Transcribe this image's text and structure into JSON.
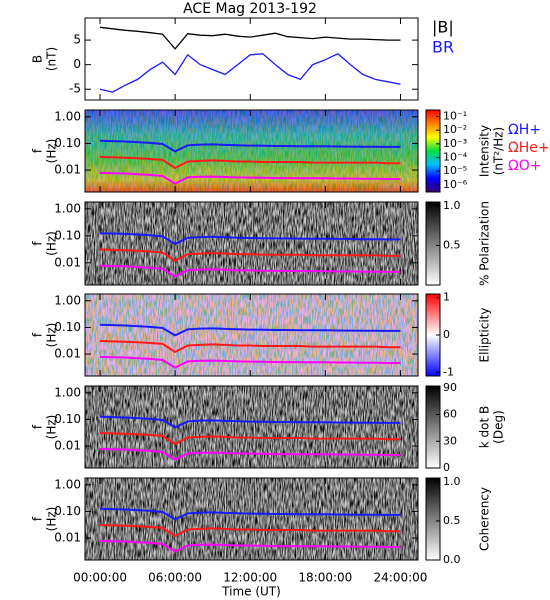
{
  "title": "ACE Mag 2013-192",
  "time_axis": {
    "xlim": [
      -1.2,
      25.4
    ],
    "xlabel": "Time (UT)",
    "xticks": [
      {
        "value": 0,
        "label": "00:00:00"
      },
      {
        "value": 6,
        "label": "06:00:00"
      },
      {
        "value": 12,
        "label": "12:00:00"
      },
      {
        "value": 18,
        "label": "18:00:00"
      },
      {
        "value": 24,
        "label": "24:00:00"
      }
    ]
  },
  "gyro_lines": {
    "x": [
      0,
      1,
      2,
      3,
      4,
      5,
      6,
      7,
      8,
      9,
      10,
      11,
      12,
      13,
      14,
      15,
      16,
      17,
      18,
      19,
      20,
      21,
      22,
      23,
      24
    ],
    "series": [
      {
        "name": "ΩH+",
        "color": "#1a1aff",
        "values": [
          0.125,
          0.122,
          0.118,
          0.112,
          0.105,
          0.095,
          0.05,
          0.085,
          0.09,
          0.092,
          0.088,
          0.085,
          0.083,
          0.082,
          0.08,
          0.08,
          0.079,
          0.078,
          0.078,
          0.077,
          0.076,
          0.075,
          0.075,
          0.074,
          0.074
        ]
      },
      {
        "name": "ΩHe+",
        "color": "#ff1a1a",
        "values": [
          0.031,
          0.03,
          0.029,
          0.028,
          0.026,
          0.024,
          0.012,
          0.021,
          0.022,
          0.023,
          0.022,
          0.021,
          0.021,
          0.02,
          0.02,
          0.02,
          0.02,
          0.019,
          0.019,
          0.019,
          0.019,
          0.019,
          0.019,
          0.018,
          0.018
        ]
      },
      {
        "name": "ΩO+",
        "color": "#ff00ff",
        "values": [
          0.0078,
          0.0076,
          0.0074,
          0.007,
          0.0066,
          0.006,
          0.0031,
          0.0053,
          0.0056,
          0.0057,
          0.0055,
          0.0053,
          0.0052,
          0.0051,
          0.005,
          0.005,
          0.0049,
          0.0049,
          0.0049,
          0.0048,
          0.0048,
          0.0047,
          0.0047,
          0.0046,
          0.0046
        ]
      }
    ]
  },
  "chart_data": [
    {
      "type": "line",
      "ylabel": [
        "B",
        "(nT)"
      ],
      "ylim": [
        -7.2,
        9.5
      ],
      "yticks": [
        -5,
        0,
        5
      ],
      "x": [
        0,
        1,
        2,
        3,
        4,
        5,
        6,
        7,
        8,
        9,
        10,
        11,
        12,
        13,
        14,
        15,
        16,
        17,
        18,
        19,
        20,
        21,
        22,
        23,
        24
      ],
      "series": [
        {
          "name": "|B|",
          "color": "#000000",
          "values": [
            7.6,
            7.3,
            7.0,
            6.8,
            6.5,
            6.2,
            3.2,
            6.3,
            6.0,
            5.9,
            6.2,
            5.8,
            5.6,
            6.0,
            6.4,
            5.7,
            5.5,
            5.3,
            5.6,
            5.4,
            5.2,
            5.2,
            5.1,
            5.0,
            5.0
          ]
        },
        {
          "name": "BR",
          "color": "#1a1aff",
          "values": [
            -5.0,
            -5.6,
            -4.2,
            -3.0,
            -1.0,
            0.5,
            -2.0,
            2.0,
            0.0,
            -1.0,
            -2.0,
            0.0,
            2.0,
            2.2,
            0.0,
            -2.0,
            -3.0,
            0.0,
            1.0,
            2.2,
            0.0,
            -2.0,
            -3.0,
            -3.5,
            -4.0
          ]
        }
      ]
    },
    {
      "type": "spectrogram",
      "texture": "intensity",
      "ylabel": [
        "f",
        "(Hz)"
      ],
      "log_y": true,
      "ylim": [
        0.0015,
        1.8
      ],
      "yticks": [
        {
          "value": 0.01,
          "label": "0.01"
        },
        {
          "value": 0.1,
          "label": "0.10"
        },
        {
          "value": 1,
          "label": "1.00"
        }
      ],
      "colorbar": {
        "label": [
          "Intensity",
          "(nT²/Hz)"
        ],
        "log": true,
        "lim": [
          3e-07,
          0.3
        ],
        "colors": [
          "#3a0070",
          "#0000ff",
          "#00c0ff",
          "#00e040",
          "#ffff00",
          "#ff8000",
          "#ff0000"
        ],
        "ticks": [
          {
            "value": 1e-06,
            "label": "10⁻⁶"
          },
          {
            "value": 1e-05,
            "label": "10⁻⁵"
          },
          {
            "value": 0.0001,
            "label": "10⁻⁴"
          },
          {
            "value": 0.001,
            "label": "10⁻³"
          },
          {
            "value": 0.01,
            "label": "10⁻²"
          },
          {
            "value": 0.1,
            "label": "10⁻¹"
          }
        ]
      }
    },
    {
      "type": "spectrogram",
      "texture": "gray",
      "ylabel": [
        "f",
        "(Hz)"
      ],
      "log_y": true,
      "ylim": [
        0.0015,
        1.8
      ],
      "yticks": [
        {
          "value": 0.01,
          "label": "0.01"
        },
        {
          "value": 0.1,
          "label": "0.10"
        },
        {
          "value": 1,
          "label": "1.00"
        }
      ],
      "colorbar": {
        "label": [
          "% Polarization"
        ],
        "lim": [
          0,
          1.05
        ],
        "colors": [
          "#ffffff",
          "#000000"
        ],
        "ticks": [
          0.5,
          {
            "value": 1,
            "label": "1.0"
          }
        ]
      }
    },
    {
      "type": "spectrogram",
      "texture": "ellipticity",
      "ylabel": [
        "f",
        "(Hz)"
      ],
      "log_y": true,
      "ylim": [
        0.0015,
        1.8
      ],
      "yticks": [
        {
          "value": 0.01,
          "label": "0.01"
        },
        {
          "value": 0.1,
          "label": "0.10"
        },
        {
          "value": 1,
          "label": "1.00"
        }
      ],
      "colorbar": {
        "label": [
          "Ellipticity"
        ],
        "lim": [
          -1.1,
          1.1
        ],
        "colors": [
          "#0000ff",
          "#ffffff",
          "#ff0000"
        ],
        "ticks": [
          -1,
          0,
          1
        ]
      }
    },
    {
      "type": "spectrogram",
      "texture": "gray",
      "ylabel": [
        "f",
        "(Hz)"
      ],
      "log_y": true,
      "ylim": [
        0.0015,
        1.8
      ],
      "yticks": [
        {
          "value": 0.01,
          "label": "0.01"
        },
        {
          "value": 0.1,
          "label": "0.10"
        },
        {
          "value": 1,
          "label": "1.00"
        }
      ],
      "colorbar": {
        "label": [
          "k dot B",
          "(Deg)"
        ],
        "lim": [
          0,
          92
        ],
        "colors": [
          "#ffffff",
          "#000000"
        ],
        "ticks": [
          0,
          30,
          60,
          90
        ]
      }
    },
    {
      "type": "spectrogram",
      "texture": "gray",
      "ylabel": [
        "f",
        "(Hz)"
      ],
      "log_y": true,
      "ylim": [
        0.0015,
        1.8
      ],
      "yticks": [
        {
          "value": 0.01,
          "label": "0.01"
        },
        {
          "value": 0.1,
          "label": "0.10"
        },
        {
          "value": 1,
          "label": "1.00"
        }
      ],
      "colorbar": {
        "label": [
          "Coherency"
        ],
        "lim": [
          0,
          1.05
        ],
        "colors": [
          "#ffffff",
          "#000000"
        ],
        "ticks": [
          {
            "value": 0,
            "label": "0.0"
          },
          0.5,
          {
            "value": 1,
            "label": "1.0"
          }
        ]
      }
    }
  ]
}
